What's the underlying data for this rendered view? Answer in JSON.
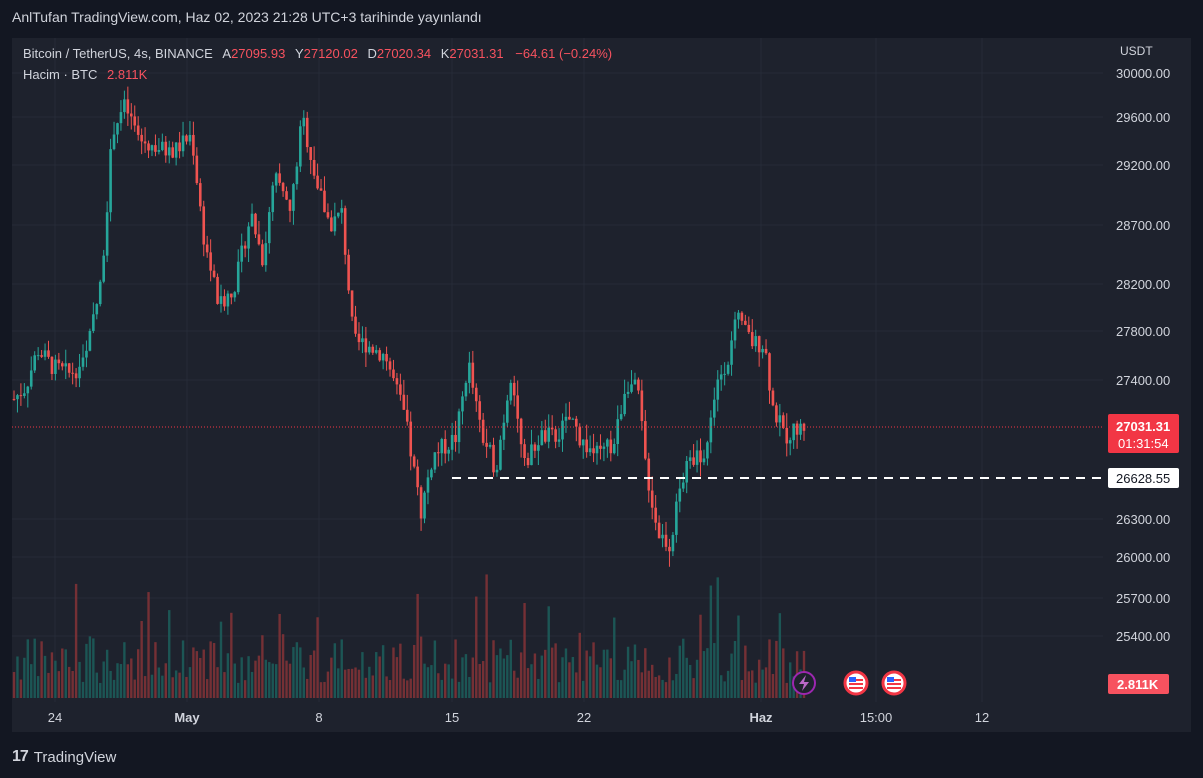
{
  "header": {
    "publish_text": "AnlTufan TradingView.com, Haz 02, 2023 21:28 UTC+3 tarihinde yayınlandı"
  },
  "legend": {
    "symbol": "Bitcoin / TetherUS, 4s, BINANCE",
    "open_label": "A",
    "open_value": "27095.93",
    "high_label": "Y",
    "high_value": "27120.02",
    "low_label": "D",
    "low_value": "27020.34",
    "close_label": "K",
    "close_value": "27031.31",
    "change": "−64.61 (−0.24%)",
    "volume_label": "Hacim · BTC",
    "volume_value": "2.811K"
  },
  "footer": {
    "logo_mark": "17",
    "brand": "TradingView"
  },
  "colors": {
    "up": "#26a69a",
    "down": "#ef5350",
    "background": "#1e222d",
    "price_tag": "#f23645",
    "text": "#d1d4dc"
  },
  "chart_data": {
    "type": "candlestick",
    "currency": "USDT",
    "y_ticks": [
      "30000.00",
      "29600.00",
      "29200.00",
      "28700.00",
      "28200.00",
      "27800.00",
      "27400.00",
      "26300.00",
      "26000.00",
      "25700.00",
      "25400.00"
    ],
    "x_tick_labels": [
      "24",
      "May",
      "8",
      "15",
      "22",
      "Haz",
      "15:00",
      "12"
    ],
    "last_price": "27031.31",
    "countdown": "01:31:54",
    "horizontal_level": "26628.55",
    "volume_last": "2.811K",
    "price_anchors": [
      {
        "t": 0,
        "p": 27250
      },
      {
        "t": 0.015,
        "p": 27350
      },
      {
        "t": 0.03,
        "p": 27650
      },
      {
        "t": 0.05,
        "p": 27500
      },
      {
        "t": 0.07,
        "p": 27450
      },
      {
        "t": 0.09,
        "p": 27550
      },
      {
        "t": 0.11,
        "p": 28200
      },
      {
        "t": 0.125,
        "p": 29500
      },
      {
        "t": 0.14,
        "p": 29700
      },
      {
        "t": 0.16,
        "p": 29400
      },
      {
        "t": 0.2,
        "p": 29300
      },
      {
        "t": 0.225,
        "p": 29450
      },
      {
        "t": 0.24,
        "p": 28600
      },
      {
        "t": 0.26,
        "p": 28000
      },
      {
        "t": 0.28,
        "p": 28200
      },
      {
        "t": 0.3,
        "p": 28800
      },
      {
        "t": 0.315,
        "p": 28400
      },
      {
        "t": 0.33,
        "p": 29100
      },
      {
        "t": 0.35,
        "p": 28800
      },
      {
        "t": 0.365,
        "p": 29600
      },
      {
        "t": 0.385,
        "p": 29000
      },
      {
        "t": 0.4,
        "p": 28700
      },
      {
        "t": 0.415,
        "p": 28800
      },
      {
        "t": 0.43,
        "p": 27700
      },
      {
        "t": 0.445,
        "p": 27700
      },
      {
        "t": 0.47,
        "p": 27600
      },
      {
        "t": 0.495,
        "p": 27100
      },
      {
        "t": 0.515,
        "p": 26350
      },
      {
        "t": 0.53,
        "p": 26800
      },
      {
        "t": 0.56,
        "p": 26950
      },
      {
        "t": 0.575,
        "p": 27550
      },
      {
        "t": 0.59,
        "p": 27000
      },
      {
        "t": 0.61,
        "p": 26700
      },
      {
        "t": 0.63,
        "p": 27500
      },
      {
        "t": 0.645,
        "p": 26700
      },
      {
        "t": 0.665,
        "p": 26950
      },
      {
        "t": 0.685,
        "p": 26950
      },
      {
        "t": 0.705,
        "p": 27100
      },
      {
        "t": 0.72,
        "p": 26900
      },
      {
        "t": 0.74,
        "p": 26800
      },
      {
        "t": 0.76,
        "p": 26900
      },
      {
        "t": 0.775,
        "p": 27400
      },
      {
        "t": 0.79,
        "p": 27300
      },
      {
        "t": 0.8,
        "p": 26700
      },
      {
        "t": 0.815,
        "p": 26200
      },
      {
        "t": 0.83,
        "p": 26100
      },
      {
        "t": 0.845,
        "p": 26600
      },
      {
        "t": 0.86,
        "p": 26800
      },
      {
        "t": 0.875,
        "p": 26800
      },
      {
        "t": 0.89,
        "p": 27400
      },
      {
        "t": 0.905,
        "p": 27600
      },
      {
        "t": 0.915,
        "p": 27900
      },
      {
        "t": 0.935,
        "p": 27700
      },
      {
        "t": 0.95,
        "p": 27700
      },
      {
        "t": 0.96,
        "p": 27200
      },
      {
        "t": 0.975,
        "p": 26950
      },
      {
        "t": 0.99,
        "p": 27000
      },
      {
        "t": 1,
        "p": 27031
      }
    ]
  }
}
